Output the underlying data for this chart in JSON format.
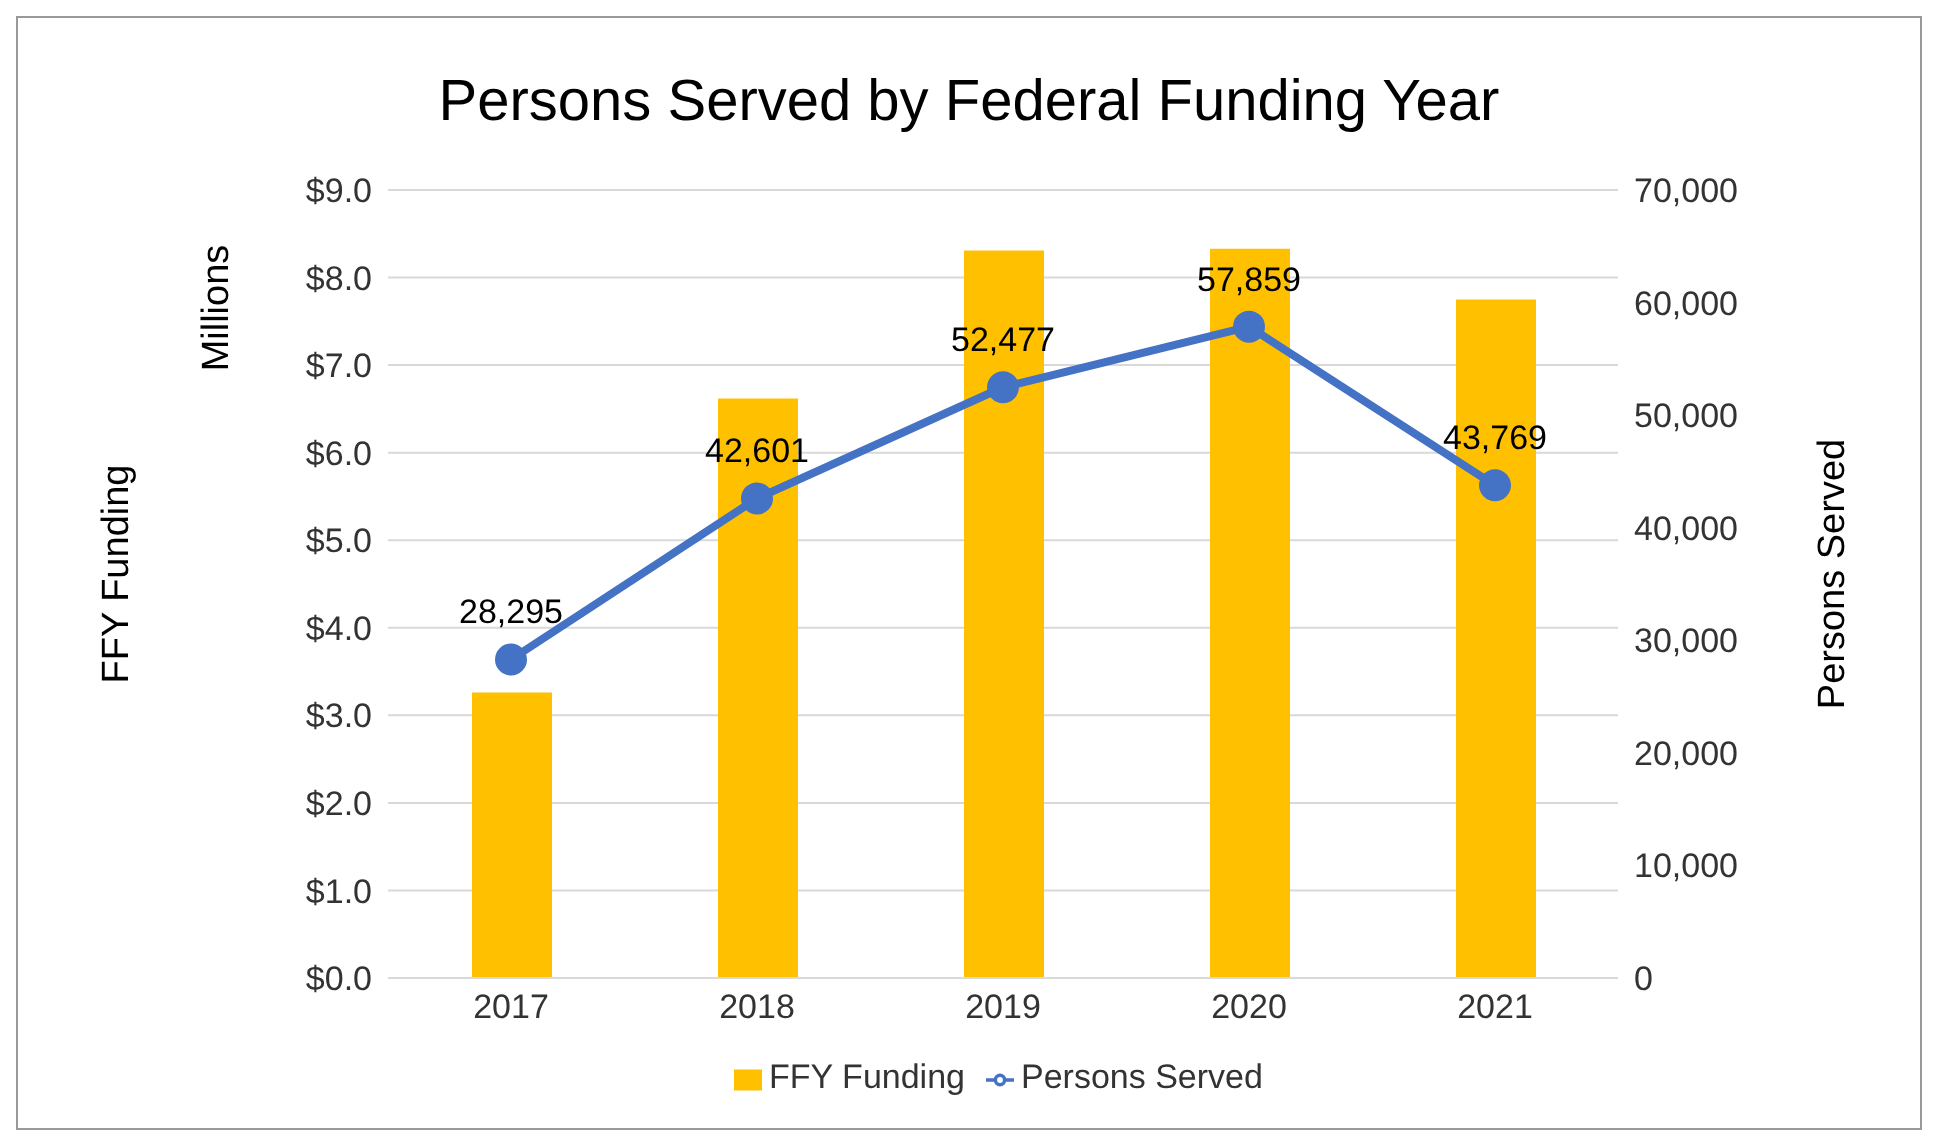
{
  "chart_data": {
    "type": "bar",
    "title": "Persons Served by Federal Funding Year",
    "ylabel": "FFY Funding",
    "y2label": "Persons Served",
    "annotations": [
      "Millions"
    ],
    "categories": [
      "2017",
      "2018",
      "2019",
      "2020",
      "2021"
    ],
    "series": [
      {
        "name": "FFY Funding",
        "color": "#ffc000",
        "values": [
          3.26,
          6.62,
          8.31,
          8.33,
          7.75
        ]
      },
      {
        "name": "Persons Served",
        "type": "line",
        "axis": "y2",
        "color": "#4472c4",
        "values": [
          28295,
          42601,
          52477,
          57859,
          43769
        ],
        "value_labels": [
          "28,295",
          "42,601",
          "52,477",
          "57,859",
          "43,769"
        ]
      }
    ],
    "ylim": [
      0,
      9
    ],
    "yticks": [
      {
        "value": 0,
        "label": "$0.0"
      },
      {
        "value": 1,
        "label": "$1.0"
      },
      {
        "value": 2,
        "label": "$2.0"
      },
      {
        "value": 3,
        "label": "$3.0"
      },
      {
        "value": 4,
        "label": "$4.0"
      },
      {
        "value": 5,
        "label": "$5.0"
      },
      {
        "value": 6,
        "label": "$6.0"
      },
      {
        "value": 7,
        "label": "$7.0"
      },
      {
        "value": 8,
        "label": "$8.0"
      },
      {
        "value": 9,
        "label": "$9.0"
      }
    ],
    "y2lim": [
      0,
      70000
    ],
    "y2ticks": [
      0,
      {
        "value": 10000,
        "label": "10,000"
      },
      {
        "value": 20000,
        "label": "20,000"
      },
      {
        "value": 30000,
        "label": "30,000"
      },
      {
        "value": 40000,
        "label": "40,000"
      },
      {
        "value": 50000,
        "label": "50,000"
      },
      {
        "value": 60000,
        "label": "60,000"
      },
      {
        "value": 70000,
        "label": "70,000"
      }
    ],
    "grid": "y",
    "legend": "bottom",
    "marker": "circle"
  }
}
